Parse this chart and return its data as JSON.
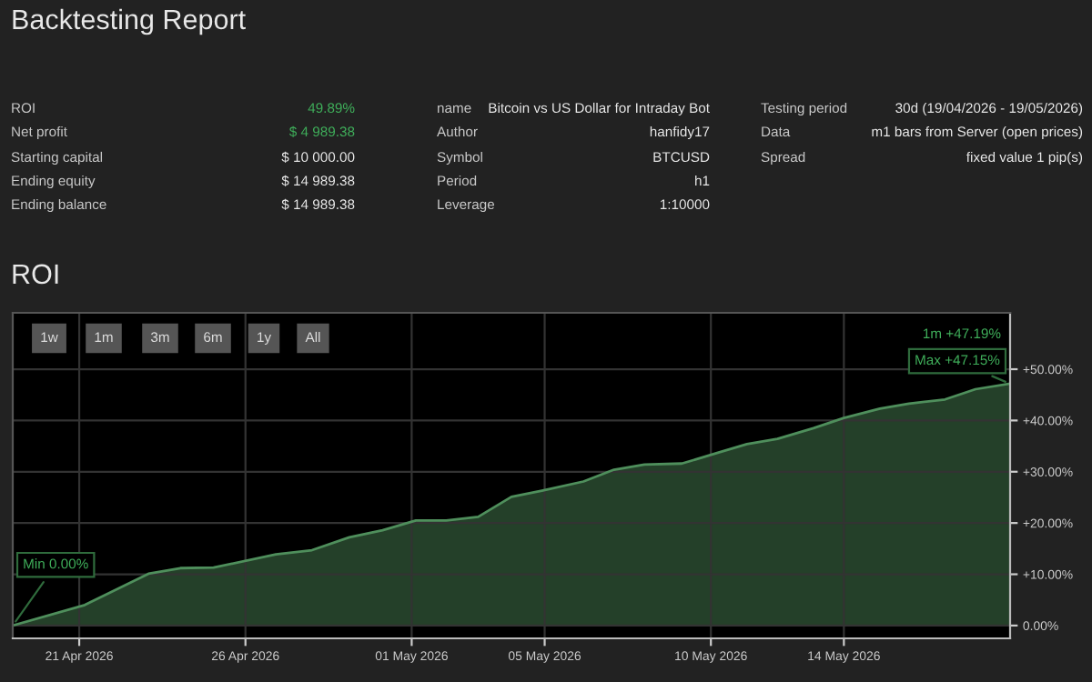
{
  "chart_data": {
    "type": "area",
    "title": "Backtesting Report",
    "subtitle": "ROI",
    "x": [
      "2026-04-19T00:00",
      "2026-04-21T04:00",
      "2026-04-23T02:00",
      "2026-04-24T01:00",
      "2026-04-25T01:00",
      "2026-04-26T22:00",
      "2026-04-28T00:00",
      "2026-04-29T03:00",
      "2026-04-30T03:00",
      "2026-05-01T03:00",
      "2026-05-02T01:00",
      "2026-05-03T00:00",
      "2026-05-04T00:00",
      "2026-05-04T22:00",
      "2026-05-06T04:00",
      "2026-05-07T02:00",
      "2026-05-08T00:00",
      "2026-05-09T03:00",
      "2026-05-10T05:00",
      "2026-05-11T02:00",
      "2026-05-12T00:00",
      "2026-05-13T02:00",
      "2026-05-14T00:00",
      "2026-05-15T02:00",
      "2026-05-15T23:00",
      "2026-05-17T01:00",
      "2026-05-17T23:00",
      "2026-05-19T00:00"
    ],
    "series": [
      {
        "color": "#4f8f5c",
        "values": [
          0.0,
          4.0,
          10.1,
          11.2,
          11.3,
          13.9,
          14.7,
          17.2,
          18.6,
          20.5,
          20.5,
          21.2,
          25.1,
          26.3,
          28.1,
          30.4,
          31.4,
          31.6,
          33.7,
          35.4,
          36.4,
          38.5,
          40.5,
          42.3,
          43.3,
          44.1,
          46.1,
          47.19
        ]
      }
    ],
    "xlim": [
      "2026-04-19T00:00",
      "2026-05-19T00:00"
    ],
    "xticks": [
      {
        "value": "2026-04-21",
        "label": "21 Apr 2026"
      },
      {
        "value": "2026-04-26",
        "label": "26 Apr 2026"
      },
      {
        "value": "2026-05-01",
        "label": "01 May 2026"
      },
      {
        "value": "2026-05-05",
        "label": "05 May 2026"
      },
      {
        "value": "2026-05-10",
        "label": "10 May 2026"
      },
      {
        "value": "2026-05-14",
        "label": "14 May 2026"
      }
    ],
    "ylim": [
      -2.5,
      61
    ],
    "yticks": [
      {
        "value": 0,
        "label": "0.00%"
      },
      {
        "value": 10,
        "label": "+10.00%"
      },
      {
        "value": 20,
        "label": "+20.00%"
      },
      {
        "value": 30,
        "label": "+30.00%"
      },
      {
        "value": 40,
        "label": "+40.00%"
      },
      {
        "value": 50,
        "label": "+50.00%"
      }
    ],
    "grid": true,
    "annotations": [
      "ROI",
      "49.89%",
      "Net profit",
      "$ 4 989.38",
      "Starting capital",
      "$ 10 000.00",
      "Ending equity",
      "$ 14 989.38",
      "Ending balance",
      "$ 14 989.38",
      "name",
      "Bitcoin vs US Dollar for Intraday Bot",
      "Author",
      "hanfidy17",
      "Symbol",
      "BTCUSD",
      "Period",
      "h1",
      "Leverage",
      "1:10000",
      "Testing period",
      "30d (19/04/2026 - 19/05/2026)",
      "Data",
      "m1 bars from Server (open prices)",
      "Spread",
      "fixed value 1 pip(s)",
      "1w",
      "1m",
      "3m",
      "6m",
      "1y",
      "All",
      "1m +47.19%",
      {
        "text": "Max +47.15%",
        "x": "2026-05-19T00:00",
        "y": 47.15
      },
      {
        "text": "Min 0.00%",
        "x": "2026-04-19T00:00",
        "y": 0.0
      }
    ]
  }
}
